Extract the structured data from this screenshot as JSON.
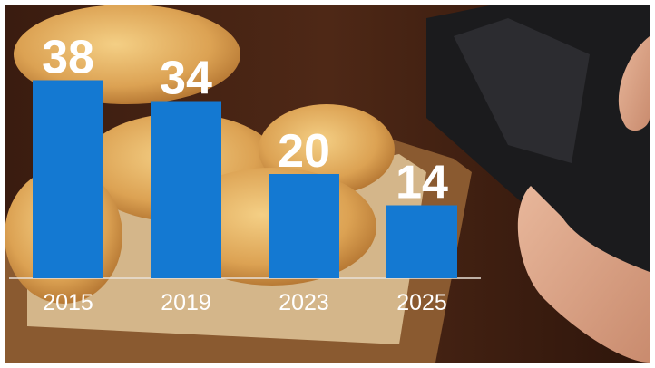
{
  "chart_data": {
    "type": "bar",
    "categories": [
      "2015",
      "2019",
      "2023",
      "2025"
    ],
    "values": [
      38,
      34,
      20,
      14
    ],
    "color": "#1479d2",
    "ylim": [
      0,
      40
    ]
  }
}
